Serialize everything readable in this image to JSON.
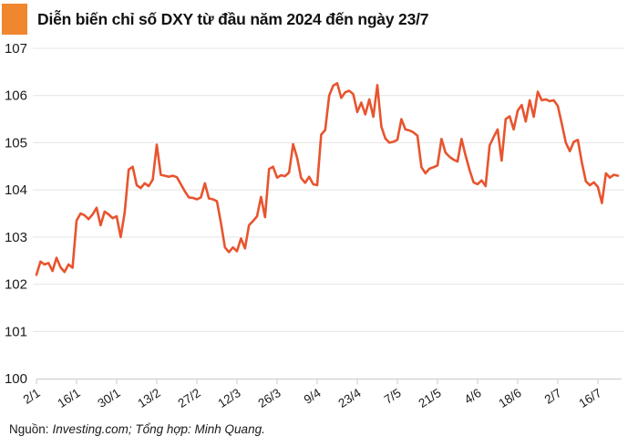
{
  "header": {
    "title": "Diễn biến chỉ số DXY từ đầu năm 2024 đến ngày 23/7"
  },
  "footer": {
    "source_label": "Nguồn:",
    "source_text": "Investing.com; Tổng hợp: Minh Quang."
  },
  "colors": {
    "accent": "#F0862E",
    "line": "#E8542E",
    "grid": "#E4E4E4",
    "axis": "#C9C9C9",
    "text": "#1A1A1A"
  },
  "chart_data": {
    "type": "line",
    "title": "Diễn biến chỉ số DXY từ đầu năm 2024 đến ngày 23/7",
    "series_name": "DXY",
    "xlabel": "",
    "ylabel": "",
    "ylim": [
      100,
      107
    ],
    "y_ticks": [
      100,
      101,
      102,
      103,
      104,
      105,
      106,
      107
    ],
    "grid": "horizontal",
    "legend": "none",
    "x_tick_labels": [
      "2/1",
      "16/1",
      "30/1",
      "13/2",
      "27/2",
      "12/3",
      "26/3",
      "9/4",
      "23/4",
      "7/5",
      "21/5",
      "4/6",
      "18/6",
      "2/7",
      "16/7"
    ],
    "x_ticks_every_n_points": 10,
    "values": [
      102.2,
      102.48,
      102.42,
      102.45,
      102.28,
      102.56,
      102.36,
      102.26,
      102.42,
      102.35,
      103.35,
      103.5,
      103.46,
      103.38,
      103.48,
      103.62,
      103.25,
      103.54,
      103.48,
      103.4,
      103.44,
      103.0,
      103.52,
      104.43,
      104.49,
      104.1,
      104.04,
      104.14,
      104.08,
      104.22,
      104.96,
      104.32,
      104.3,
      104.28,
      104.3,
      104.27,
      104.12,
      103.97,
      103.84,
      103.83,
      103.8,
      103.84,
      104.14,
      103.82,
      103.8,
      103.76,
      103.3,
      102.78,
      102.68,
      102.78,
      102.7,
      102.97,
      102.76,
      103.25,
      103.34,
      103.44,
      103.85,
      103.42,
      104.44,
      104.49,
      104.26,
      104.31,
      104.29,
      104.37,
      104.97,
      104.68,
      104.25,
      104.15,
      104.28,
      104.12,
      104.1,
      105.17,
      105.27,
      106.0,
      106.21,
      106.26,
      105.95,
      106.07,
      106.1,
      106.03,
      105.65,
      105.85,
      105.6,
      105.92,
      105.55,
      106.22,
      105.34,
      105.09,
      105.0,
      105.02,
      105.06,
      105.5,
      105.28,
      105.26,
      105.22,
      105.15,
      104.48,
      104.35,
      104.45,
      104.48,
      104.52,
      105.08,
      104.79,
      104.7,
      104.64,
      104.6,
      105.08,
      104.73,
      104.42,
      104.16,
      104.12,
      104.2,
      104.08,
      104.94,
      105.12,
      105.28,
      104.62,
      105.5,
      105.56,
      105.28,
      105.68,
      105.8,
      105.45,
      105.9,
      105.55,
      106.08,
      105.9,
      105.92,
      105.88,
      105.9,
      105.78,
      105.4,
      105.0,
      104.82,
      105.02,
      105.06,
      104.58,
      104.18,
      104.1,
      104.16,
      104.06,
      103.72,
      104.35,
      104.26,
      104.32,
      104.3
    ]
  }
}
